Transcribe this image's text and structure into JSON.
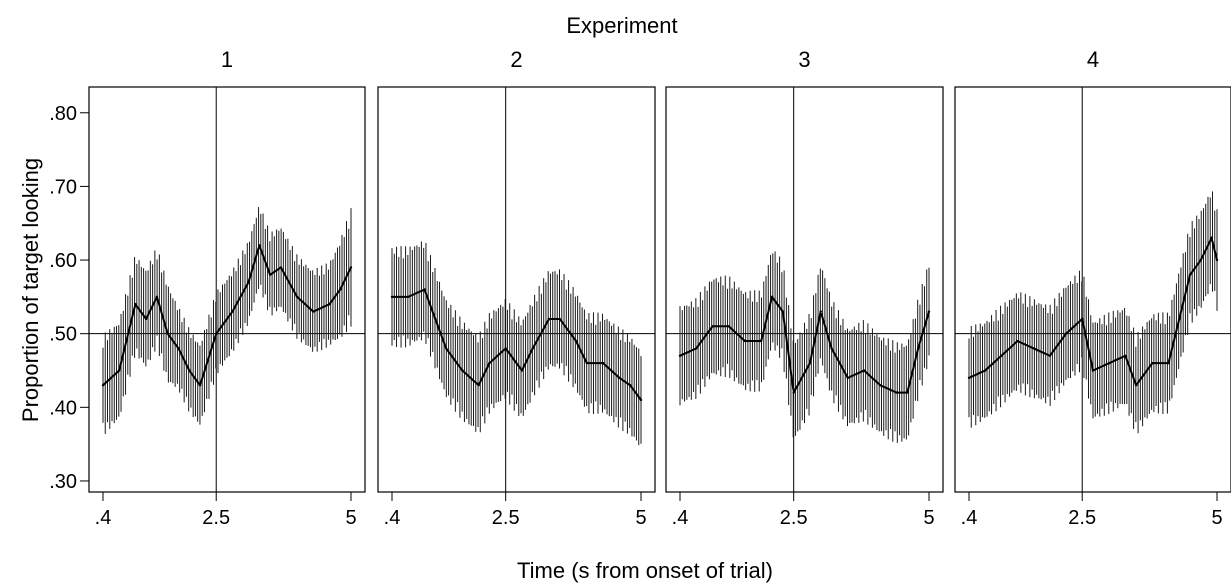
{
  "figure_title": "Experiment",
  "chart_data": {
    "type": "line",
    "title": "Experiment",
    "xlabel": "Time (s from onset of trial)",
    "ylabel": "Proportion of target looking",
    "ylim": [
      0.285,
      0.835
    ],
    "xlim": [
      0.4,
      5.0
    ],
    "y_ticks": [
      0.3,
      0.4,
      0.5,
      0.6,
      0.7,
      0.8
    ],
    "y_tick_labels": [
      ".30",
      ".40",
      ".50",
      ".60",
      ".70",
      ".80"
    ],
    "x_ticks": [
      0.4,
      2.5,
      5.0
    ],
    "x_tick_labels": [
      ".4",
      "2.5",
      "5"
    ],
    "reference_lines": {
      "x": 2.5,
      "y": 0.5
    },
    "error_bars": "vertical bars around mean",
    "line_color": "#000000",
    "panels": [
      {
        "label": "1",
        "x": [
          0.4,
          0.7,
          1.0,
          1.2,
          1.4,
          1.6,
          1.8,
          2.0,
          2.2,
          2.5,
          2.8,
          3.1,
          3.3,
          3.5,
          3.7,
          4.0,
          4.3,
          4.6,
          4.8,
          5.0
        ],
        "y": [
          0.43,
          0.45,
          0.54,
          0.52,
          0.55,
          0.5,
          0.48,
          0.45,
          0.43,
          0.5,
          0.53,
          0.57,
          0.62,
          0.58,
          0.59,
          0.55,
          0.53,
          0.54,
          0.56,
          0.59
        ],
        "err": [
          0.06,
          0.06,
          0.06,
          0.06,
          0.06,
          0.06,
          0.05,
          0.05,
          0.05,
          0.05,
          0.05,
          0.05,
          0.05,
          0.05,
          0.05,
          0.05,
          0.05,
          0.05,
          0.06,
          0.07
        ]
      },
      {
        "label": "2",
        "x": [
          0.4,
          0.7,
          1.0,
          1.2,
          1.4,
          1.7,
          2.0,
          2.2,
          2.5,
          2.8,
          3.0,
          3.3,
          3.5,
          3.8,
          4.0,
          4.3,
          4.6,
          4.8,
          5.0
        ],
        "y": [
          0.55,
          0.55,
          0.56,
          0.52,
          0.48,
          0.45,
          0.43,
          0.46,
          0.48,
          0.45,
          0.48,
          0.52,
          0.52,
          0.49,
          0.46,
          0.46,
          0.44,
          0.43,
          0.41
        ],
        "err": [
          0.06,
          0.06,
          0.06,
          0.06,
          0.06,
          0.06,
          0.06,
          0.06,
          0.06,
          0.06,
          0.06,
          0.06,
          0.06,
          0.06,
          0.06,
          0.06,
          0.06,
          0.06,
          0.06
        ]
      },
      {
        "label": "3",
        "x": [
          0.4,
          0.7,
          1.0,
          1.3,
          1.6,
          1.9,
          2.1,
          2.3,
          2.5,
          2.8,
          3.0,
          3.2,
          3.5,
          3.8,
          4.1,
          4.4,
          4.6,
          4.8,
          5.0
        ],
        "y": [
          0.47,
          0.48,
          0.51,
          0.51,
          0.49,
          0.49,
          0.55,
          0.53,
          0.42,
          0.46,
          0.53,
          0.48,
          0.44,
          0.45,
          0.43,
          0.42,
          0.42,
          0.48,
          0.53
        ],
        "err": [
          0.06,
          0.06,
          0.06,
          0.06,
          0.06,
          0.06,
          0.06,
          0.06,
          0.06,
          0.06,
          0.06,
          0.06,
          0.06,
          0.06,
          0.06,
          0.06,
          0.06,
          0.06,
          0.06
        ]
      },
      {
        "label": "4",
        "x": [
          0.4,
          0.7,
          1.0,
          1.3,
          1.6,
          1.9,
          2.2,
          2.5,
          2.7,
          3.0,
          3.3,
          3.5,
          3.8,
          4.1,
          4.3,
          4.5,
          4.7,
          4.9,
          5.0
        ],
        "y": [
          0.44,
          0.45,
          0.47,
          0.49,
          0.48,
          0.47,
          0.5,
          0.52,
          0.45,
          0.46,
          0.47,
          0.43,
          0.46,
          0.46,
          0.52,
          0.58,
          0.6,
          0.63,
          0.6
        ],
        "err": [
          0.06,
          0.06,
          0.06,
          0.06,
          0.06,
          0.06,
          0.06,
          0.06,
          0.06,
          0.06,
          0.06,
          0.06,
          0.06,
          0.06,
          0.06,
          0.06,
          0.06,
          0.06,
          0.06
        ]
      }
    ]
  }
}
